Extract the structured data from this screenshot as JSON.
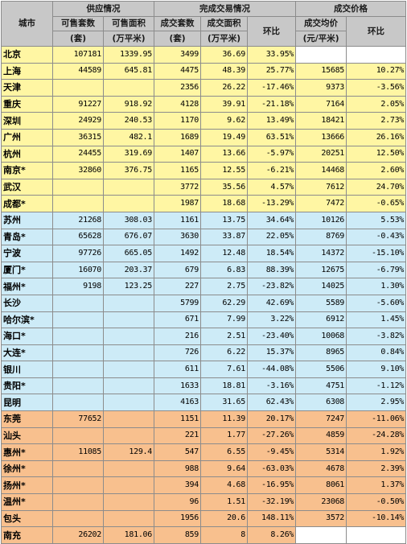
{
  "header": {
    "city": "城市",
    "groups": {
      "supply": "供应情况",
      "deals": "完成交易情况",
      "price": "成交价格"
    },
    "cols": {
      "units_for_sale": "可售套数",
      "area_for_sale": "可售面积",
      "deal_units": "成交套数",
      "deal_area": "成交面积",
      "mom": "环比",
      "avg_price": "成交均价",
      "price_mom": "环比"
    },
    "units": {
      "units_for_sale": "(套)",
      "area_for_sale": "(万平米)",
      "deal_units": "(套)",
      "deal_area": "(万平米)",
      "avg_price": "(元/平米)"
    }
  },
  "rows": [
    {
      "group": "yellow",
      "city": "北京",
      "units_for_sale": "107181",
      "area_for_sale": "1339.95",
      "deal_units": "3499",
      "deal_area": "36.69",
      "deal_mom": "33.95%",
      "avg_price": "",
      "price_mom": ""
    },
    {
      "group": "yellow",
      "city": "上海",
      "units_for_sale": "44589",
      "area_for_sale": "645.81",
      "deal_units": "4475",
      "deal_area": "48.39",
      "deal_mom": "25.77%",
      "avg_price": "15685",
      "price_mom": "10.27%"
    },
    {
      "group": "yellow",
      "city": "天津",
      "units_for_sale": "",
      "area_for_sale": "",
      "deal_units": "2356",
      "deal_area": "26.22",
      "deal_mom": "-17.46%",
      "avg_price": "9373",
      "price_mom": "-3.56%"
    },
    {
      "group": "yellow",
      "city": "重庆",
      "units_for_sale": "91227",
      "area_for_sale": "918.92",
      "deal_units": "4128",
      "deal_area": "39.91",
      "deal_mom": "-21.18%",
      "avg_price": "7164",
      "price_mom": "2.05%"
    },
    {
      "group": "yellow",
      "city": "深圳",
      "units_for_sale": "24929",
      "area_for_sale": "240.53",
      "deal_units": "1170",
      "deal_area": "9.62",
      "deal_mom": "13.49%",
      "avg_price": "18421",
      "price_mom": "2.73%"
    },
    {
      "group": "yellow",
      "city": "广州",
      "units_for_sale": "36315",
      "area_for_sale": "482.1",
      "deal_units": "1689",
      "deal_area": "19.49",
      "deal_mom": "63.51%",
      "avg_price": "13666",
      "price_mom": "26.16%"
    },
    {
      "group": "yellow",
      "city": "杭州",
      "units_for_sale": "24455",
      "area_for_sale": "319.69",
      "deal_units": "1407",
      "deal_area": "13.66",
      "deal_mom": "-5.97%",
      "avg_price": "20251",
      "price_mom": "12.50%"
    },
    {
      "group": "yellow",
      "city": "南京*",
      "units_for_sale": "32860",
      "area_for_sale": "376.75",
      "deal_units": "1165",
      "deal_area": "12.55",
      "deal_mom": "-6.21%",
      "avg_price": "14468",
      "price_mom": "2.60%"
    },
    {
      "group": "yellow",
      "city": "武汉",
      "units_for_sale": "",
      "area_for_sale": "",
      "deal_units": "3772",
      "deal_area": "35.56",
      "deal_mom": "4.57%",
      "avg_price": "7612",
      "price_mom": "24.70%"
    },
    {
      "group": "yellow",
      "city": "成都*",
      "units_for_sale": "",
      "area_for_sale": "",
      "deal_units": "1987",
      "deal_area": "18.68",
      "deal_mom": "-13.29%",
      "avg_price": "7472",
      "price_mom": "-0.65%"
    },
    {
      "group": "blue",
      "city": "苏州",
      "units_for_sale": "21268",
      "area_for_sale": "308.03",
      "deal_units": "1161",
      "deal_area": "13.75",
      "deal_mom": "34.64%",
      "avg_price": "10126",
      "price_mom": "5.53%"
    },
    {
      "group": "blue",
      "city": "青岛*",
      "units_for_sale": "65628",
      "area_for_sale": "676.07",
      "deal_units": "3630",
      "deal_area": "33.87",
      "deal_mom": "22.05%",
      "avg_price": "8769",
      "price_mom": "-0.43%"
    },
    {
      "group": "blue",
      "city": "宁波",
      "units_for_sale": "97726",
      "area_for_sale": "665.05",
      "deal_units": "1492",
      "deal_area": "12.48",
      "deal_mom": "18.54%",
      "avg_price": "14372",
      "price_mom": "-15.10%"
    },
    {
      "group": "blue",
      "city": "厦门*",
      "units_for_sale": "16070",
      "area_for_sale": "203.37",
      "deal_units": "679",
      "deal_area": "6.83",
      "deal_mom": "88.39%",
      "avg_price": "12675",
      "price_mom": "-6.79%"
    },
    {
      "group": "blue",
      "city": "福州*",
      "units_for_sale": "9198",
      "area_for_sale": "123.25",
      "deal_units": "227",
      "deal_area": "2.75",
      "deal_mom": "-23.82%",
      "avg_price": "14025",
      "price_mom": "1.30%"
    },
    {
      "group": "blue",
      "city": "长沙",
      "units_for_sale": "",
      "area_for_sale": "",
      "deal_units": "5799",
      "deal_area": "62.29",
      "deal_mom": "42.69%",
      "avg_price": "5589",
      "price_mom": "-5.60%"
    },
    {
      "group": "blue",
      "city": "哈尔滨*",
      "units_for_sale": "",
      "area_for_sale": "",
      "deal_units": "671",
      "deal_area": "7.99",
      "deal_mom": "3.22%",
      "avg_price": "6912",
      "price_mom": "1.45%"
    },
    {
      "group": "blue",
      "city": "海口*",
      "units_for_sale": "",
      "area_for_sale": "",
      "deal_units": "216",
      "deal_area": "2.51",
      "deal_mom": "-23.40%",
      "avg_price": "10068",
      "price_mom": "-3.82%"
    },
    {
      "group": "blue",
      "city": "大连*",
      "units_for_sale": "",
      "area_for_sale": "",
      "deal_units": "726",
      "deal_area": "6.22",
      "deal_mom": "15.37%",
      "avg_price": "8965",
      "price_mom": "0.84%"
    },
    {
      "group": "blue",
      "city": "银川",
      "units_for_sale": "",
      "area_for_sale": "",
      "deal_units": "611",
      "deal_area": "7.61",
      "deal_mom": "-44.08%",
      "avg_price": "5506",
      "price_mom": "9.10%"
    },
    {
      "group": "blue",
      "city": "贵阳*",
      "units_for_sale": "",
      "area_for_sale": "",
      "deal_units": "1633",
      "deal_area": "18.81",
      "deal_mom": "-3.16%",
      "avg_price": "4751",
      "price_mom": "-1.12%"
    },
    {
      "group": "blue",
      "city": "昆明",
      "units_for_sale": "",
      "area_for_sale": "",
      "deal_units": "4163",
      "deal_area": "31.65",
      "deal_mom": "62.43%",
      "avg_price": "6308",
      "price_mom": "2.95%"
    },
    {
      "group": "orange",
      "city": "东莞",
      "units_for_sale": "77652",
      "area_for_sale": "",
      "deal_units": "1151",
      "deal_area": "11.39",
      "deal_mom": "20.17%",
      "avg_price": "7247",
      "price_mom": "-11.06%"
    },
    {
      "group": "orange",
      "city": "汕头",
      "units_for_sale": "",
      "area_for_sale": "",
      "deal_units": "221",
      "deal_area": "1.77",
      "deal_mom": "-27.26%",
      "avg_price": "4859",
      "price_mom": "-24.28%"
    },
    {
      "group": "orange",
      "city": "惠州*",
      "units_for_sale": "11085",
      "area_for_sale": "129.4",
      "deal_units": "547",
      "deal_area": "6.55",
      "deal_mom": "-9.45%",
      "avg_price": "5314",
      "price_mom": "1.92%"
    },
    {
      "group": "orange",
      "city": "徐州*",
      "units_for_sale": "",
      "area_for_sale": "",
      "deal_units": "988",
      "deal_area": "9.64",
      "deal_mom": "-63.03%",
      "avg_price": "4678",
      "price_mom": "2.39%"
    },
    {
      "group": "orange",
      "city": "扬州*",
      "units_for_sale": "",
      "area_for_sale": "",
      "deal_units": "394",
      "deal_area": "4.68",
      "deal_mom": "-16.95%",
      "avg_price": "8061",
      "price_mom": "1.37%"
    },
    {
      "group": "orange",
      "city": "温州*",
      "units_for_sale": "",
      "area_for_sale": "",
      "deal_units": "96",
      "deal_area": "1.51",
      "deal_mom": "-32.19%",
      "avg_price": "23068",
      "price_mom": "-0.50%"
    },
    {
      "group": "orange",
      "city": "包头",
      "units_for_sale": "",
      "area_for_sale": "",
      "deal_units": "1956",
      "deal_area": "20.6",
      "deal_mom": "148.11%",
      "avg_price": "3572",
      "price_mom": "-10.14%"
    },
    {
      "group": "orange",
      "city": "南充",
      "units_for_sale": "26202",
      "area_for_sale": "181.06",
      "deal_units": "859",
      "deal_area": "8",
      "deal_mom": "8.26%",
      "avg_price": "",
      "price_mom": ""
    }
  ],
  "colors": {
    "header": "#c8c8c8",
    "yellow": "#fff6a3",
    "blue": "#cdebf7",
    "orange": "#f8c08e",
    "border": "#8c8c8c"
  }
}
